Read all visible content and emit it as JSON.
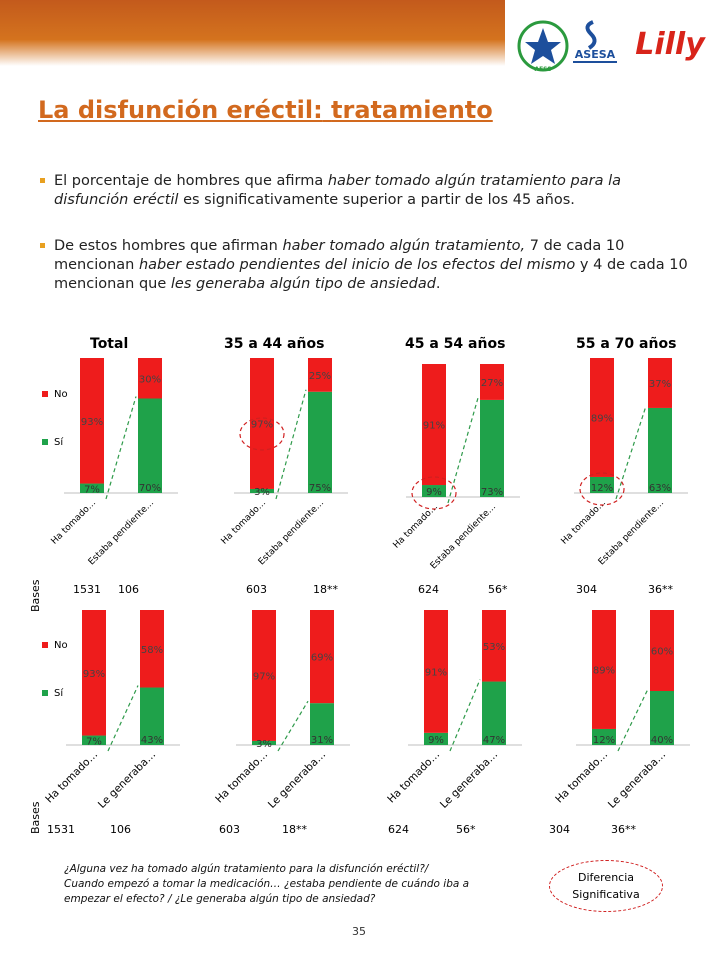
{
  "header": {
    "title_part1": "La disfunción eréctil:",
    "title_part2": "tratamiento",
    "logos": [
      {
        "name": "aess-logo",
        "text": "AESS"
      },
      {
        "name": "asesa-logo",
        "text": "ASESA"
      },
      {
        "name": "lilly-logo",
        "text": "Lilly"
      }
    ]
  },
  "bullets": [
    {
      "segments": [
        {
          "t": "El porcentaje de hombres que afirma ",
          "i": false
        },
        {
          "t": "haber tomado algún tratamiento para la disfunción eréctil",
          "i": true
        },
        {
          "t": " es significativamente superior a partir de los 45 años.",
          "i": false
        }
      ]
    },
    {
      "segments": [
        {
          "t": "De estos  hombres que afirman ",
          "i": false
        },
        {
          "t": "haber tomado algún tratamiento,",
          "i": true
        },
        {
          "t": " 7 de cada 10 mencionan ",
          "i": false
        },
        {
          "t": "haber estado pendientes del inicio de los efectos del mismo",
          "i": true
        },
        {
          "t": " y 4  de cada 10 mencionan que ",
          "i": false
        },
        {
          "t": "les generaba algún tipo de ansiedad",
          "i": true
        },
        {
          "t": ".",
          "i": false
        }
      ]
    }
  ],
  "bases_label": "Bases",
  "legend": {
    "no": "No",
    "si": "Sí"
  },
  "colors": {
    "no": "#ee1c1c",
    "si": "#1fa24a",
    "dash": "#2e9a4a",
    "circle": "#d02020",
    "title": "#d2691e"
  },
  "chart_data": [
    {
      "type": "bar",
      "stacked": true,
      "title": "Total",
      "categories": [
        "Ha tomado…",
        "Estaba pendiente…"
      ],
      "series": [
        {
          "name": "Sí",
          "values": [
            7,
            70
          ]
        },
        {
          "name": "No",
          "values": [
            93,
            30
          ]
        }
      ],
      "labels_si": [
        "7%",
        "70%"
      ],
      "labels_no": [
        "93%",
        "30%"
      ],
      "bases": [
        "1531",
        "106"
      ],
      "legend": "left",
      "circled": null
    },
    {
      "type": "bar",
      "stacked": true,
      "title": "35 a 44 años",
      "categories": [
        "Ha tomado…",
        "Estaba pendiente…"
      ],
      "series": [
        {
          "name": "Sí",
          "values": [
            3,
            75
          ]
        },
        {
          "name": "No",
          "values": [
            97,
            25
          ]
        }
      ],
      "labels_si": [
        "3%",
        "75%"
      ],
      "labels_no": [
        "97%",
        "25%"
      ],
      "bases": [
        "603",
        "18**"
      ],
      "circled": "no"
    },
    {
      "type": "bar",
      "stacked": true,
      "title": "45 a 54 años",
      "categories": [
        "Ha tomado…",
        "Estaba pendiente…"
      ],
      "series": [
        {
          "name": "Sí",
          "values": [
            9,
            73
          ]
        },
        {
          "name": "No",
          "values": [
            91,
            27
          ]
        }
      ],
      "labels_si": [
        "9%",
        "73%"
      ],
      "labels_no": [
        "91%",
        "27%"
      ],
      "bases": [
        "624",
        "56*"
      ],
      "circled": "si"
    },
    {
      "type": "bar",
      "stacked": true,
      "title": "55 a 70 años",
      "categories": [
        "Ha tomado…",
        "Estaba pendiente…"
      ],
      "series": [
        {
          "name": "Sí",
          "values": [
            12,
            63
          ]
        },
        {
          "name": "No",
          "values": [
            89,
            37
          ]
        }
      ],
      "labels_si": [
        "12%",
        "63%"
      ],
      "labels_no": [
        "89%",
        "37%"
      ],
      "bases": [
        "304",
        "36**"
      ],
      "circled": "si"
    },
    {
      "type": "bar",
      "stacked": true,
      "title": "",
      "categories": [
        "Ha tomado…",
        "Le generaba…"
      ],
      "series": [
        {
          "name": "Sí",
          "values": [
            7,
            43
          ]
        },
        {
          "name": "No",
          "values": [
            93,
            58
          ]
        }
      ],
      "labels_si": [
        "7%",
        "43%"
      ],
      "labels_no": [
        "93%",
        "58%"
      ],
      "bases": [
        "1531",
        "106"
      ],
      "legend": "left",
      "circled": null
    },
    {
      "type": "bar",
      "stacked": true,
      "title": "",
      "categories": [
        "Ha tomado…",
        "Le generaba…"
      ],
      "series": [
        {
          "name": "Sí",
          "values": [
            3,
            31
          ]
        },
        {
          "name": "No",
          "values": [
            97,
            69
          ]
        }
      ],
      "labels_si": [
        "3%",
        "31%"
      ],
      "labels_no": [
        "97%",
        "69%"
      ],
      "bases": [
        "603",
        "18**"
      ],
      "circled": null
    },
    {
      "type": "bar",
      "stacked": true,
      "title": "",
      "categories": [
        "Ha tomado…",
        "Le generaba…"
      ],
      "series": [
        {
          "name": "Sí",
          "values": [
            9,
            47
          ]
        },
        {
          "name": "No",
          "values": [
            91,
            53
          ]
        }
      ],
      "labels_si": [
        "9%",
        "47%"
      ],
      "labels_no": [
        "91%",
        "53%"
      ],
      "bases": [
        "624",
        "56*"
      ],
      "circled": null
    },
    {
      "type": "bar",
      "stacked": true,
      "title": "",
      "categories": [
        "Ha tomado…",
        "Le generaba…"
      ],
      "series": [
        {
          "name": "Sí",
          "values": [
            12,
            40
          ]
        },
        {
          "name": "No",
          "values": [
            89,
            60
          ]
        }
      ],
      "labels_si": [
        "12%",
        "40%"
      ],
      "labels_no": [
        "89%",
        "60%"
      ],
      "bases": [
        "304",
        "36**"
      ],
      "circled": null
    }
  ],
  "footnote": [
    "¿Alguna vez ha tomado algún tratamiento para la disfunción eréctil?/",
    "Cuando empezó a tomar la medicación… ¿estaba pendiente de cuándo iba a",
    "empezar el efecto? / ¿Le generaba algún tipo de ansiedad?"
  ],
  "significance_legend": [
    "Diferencia",
    "Significativa"
  ],
  "page_number": "35"
}
